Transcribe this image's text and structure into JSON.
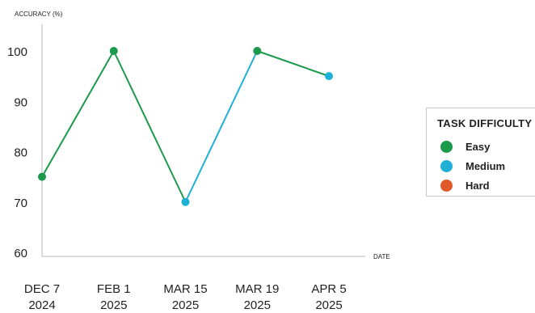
{
  "chart_data": {
    "type": "line",
    "ylabel": "ACCURACY (%)",
    "xlabel": "DATE",
    "ylim": [
      60,
      100
    ],
    "yticks": [
      "60",
      "70",
      "80",
      "90",
      "100"
    ],
    "x": [
      "2024-12-07",
      "2025-02-01",
      "2025-03-15",
      "2025-03-19",
      "2025-04-05"
    ],
    "x_tick_labels": [
      [
        "DEC 7",
        "2024"
      ],
      [
        "FEB 1",
        "2025"
      ],
      [
        "MAR 15",
        "2025"
      ],
      [
        "MAR 19",
        "2025"
      ],
      [
        "APR 5",
        "2025"
      ]
    ],
    "values": [
      75,
      100,
      70,
      100,
      95
    ],
    "point_difficulty": [
      "Easy",
      "Easy",
      "Medium",
      "Easy",
      "Medium"
    ],
    "grid": false,
    "legend": {
      "title": "TASK DIFFICULTY",
      "placement": "right",
      "items": [
        {
          "label": "Easy",
          "color": "#1a9a4a"
        },
        {
          "label": "Medium",
          "color": "#1fb0d6"
        },
        {
          "label": "Hard",
          "color": "#e05a2b"
        }
      ]
    }
  }
}
